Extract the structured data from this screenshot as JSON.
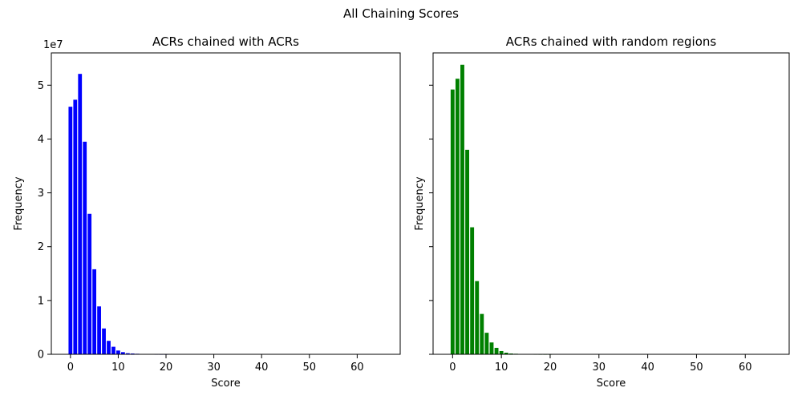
{
  "figure": {
    "title": "All Chaining Scores"
  },
  "chart_data": [
    {
      "type": "bar",
      "title": "ACRs chained with ACRs",
      "xlabel": "Score",
      "ylabel": "Frequency",
      "y_scale_label": "1e7",
      "color": "#0000ff",
      "xlim": [
        -4,
        69
      ],
      "ylim": [
        0,
        56000000
      ],
      "x_ticks": [
        0,
        10,
        20,
        30,
        40,
        50,
        60
      ],
      "y_ticks": [
        0,
        10000000,
        20000000,
        30000000,
        40000000,
        50000000
      ],
      "y_tick_labels": [
        "0",
        "1",
        "2",
        "3",
        "4",
        "5"
      ],
      "x": [
        0,
        1,
        2,
        3,
        4,
        5,
        6,
        7,
        8,
        9,
        10,
        11,
        12,
        13,
        14,
        15,
        16,
        17,
        18,
        19,
        20
      ],
      "values": [
        46000000,
        47300000,
        52100000,
        39500000,
        26100000,
        15800000,
        8900000,
        4800000,
        2500000,
        1400000,
        700000,
        400000,
        200000,
        150000,
        100000,
        50000,
        30000,
        20000,
        10000,
        5000,
        3000
      ]
    },
    {
      "type": "bar",
      "title": "ACRs chained with random regions",
      "xlabel": "Score",
      "ylabel": "Frequency",
      "color": "#008000",
      "xlim": [
        -4,
        69
      ],
      "ylim": [
        0,
        56000000
      ],
      "x_ticks": [
        0,
        10,
        20,
        30,
        40,
        50,
        60
      ],
      "y_ticks": [
        0,
        10000000,
        20000000,
        30000000,
        40000000,
        50000000
      ],
      "x": [
        0,
        1,
        2,
        3,
        4,
        5,
        6,
        7,
        8,
        9,
        10,
        11,
        12,
        13,
        14,
        15,
        16,
        17,
        18,
        19,
        20
      ],
      "values": [
        49200000,
        51200000,
        53800000,
        38000000,
        23600000,
        13600000,
        7500000,
        4000000,
        2200000,
        1200000,
        600000,
        300000,
        150000,
        100000,
        60000,
        30000,
        20000,
        10000,
        5000,
        3000,
        2000
      ]
    }
  ]
}
